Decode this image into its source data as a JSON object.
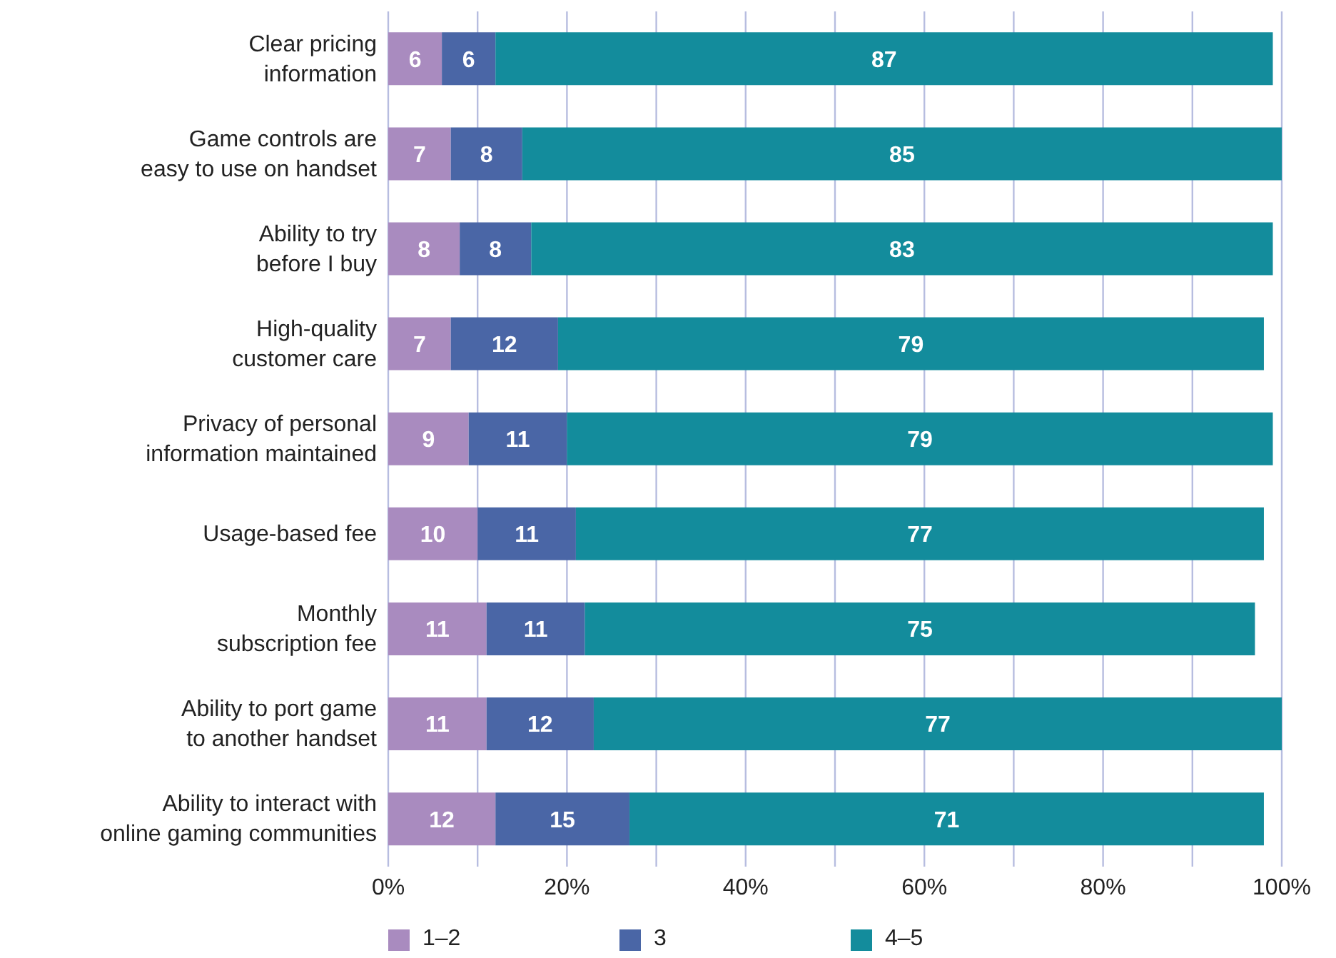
{
  "chart_data": {
    "type": "bar",
    "orientation": "horizontal",
    "stacked": true,
    "categories": [
      "Clear pricing information",
      "Game controls are easy to use on handset",
      "Ability to try before I buy",
      "High-quality customer care",
      "Privacy of personal information maintained",
      "Usage-based fee",
      "Monthly subscription fee",
      "Ability to port game to another handset",
      "Ability to interact with online gaming communities"
    ],
    "series": [
      {
        "name": "1–2",
        "color": "#a98bbf",
        "values": [
          6,
          7,
          8,
          7,
          9,
          10,
          11,
          11,
          12
        ]
      },
      {
        "name": "3",
        "color": "#4a66a6",
        "values": [
          6,
          8,
          8,
          12,
          11,
          11,
          11,
          12,
          15
        ]
      },
      {
        "name": "4–5",
        "color": "#138c9c",
        "values": [
          87,
          85,
          83,
          79,
          79,
          77,
          75,
          77,
          71
        ]
      }
    ],
    "xlim": [
      0,
      100
    ],
    "xticks": [
      {
        "value": 0,
        "label": "0%"
      },
      {
        "value": 10,
        "label": null
      },
      {
        "value": 20,
        "label": "20%"
      },
      {
        "value": 30,
        "label": null
      },
      {
        "value": 40,
        "label": "40%"
      },
      {
        "value": 50,
        "label": null
      },
      {
        "value": 60,
        "label": "60%"
      },
      {
        "value": 70,
        "label": null
      },
      {
        "value": 80,
        "label": "80%"
      },
      {
        "value": 90,
        "label": null
      },
      {
        "value": 100,
        "label": "100%"
      }
    ],
    "grid": "x",
    "legend": "bottom",
    "data_labels": true
  }
}
